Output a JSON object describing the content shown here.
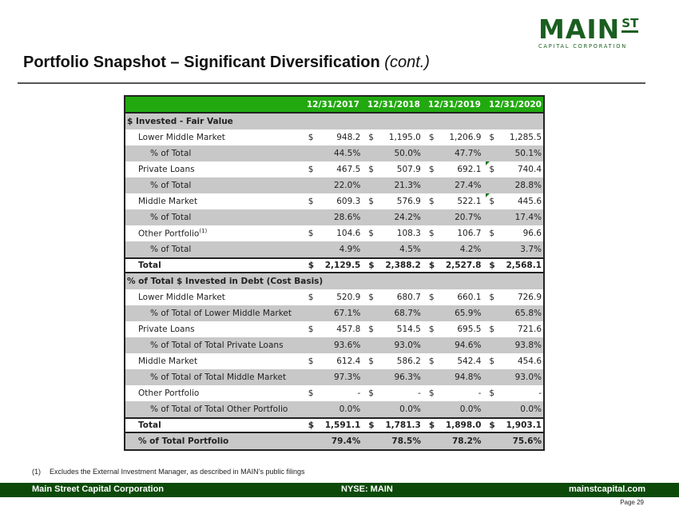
{
  "logo": {
    "main": "MAIN",
    "superscript": "ST",
    "subtitle": "CAPITAL CORPORATION"
  },
  "title": {
    "main": "Portfolio Snapshot – Significant Diversification",
    "suffix": "(cont.)"
  },
  "table": {
    "columns": [
      "12/31/2017",
      "12/31/2018",
      "12/31/2019",
      "12/31/2020"
    ],
    "rows": [
      {
        "type": "section",
        "label": "$ Invested - Fair Value"
      },
      {
        "type": "white",
        "indent": 1,
        "label": "Lower Middle Market",
        "dollar": true,
        "values": [
          "948.2",
          "1,195.0",
          "1,206.9",
          "1,285.5"
        ]
      },
      {
        "type": "gray",
        "indent": 2,
        "label": "% of Total",
        "dollar": false,
        "values": [
          "44.5%",
          "50.0%",
          "47.7%",
          "50.1%"
        ]
      },
      {
        "type": "white",
        "indent": 1,
        "label": "Private Loans",
        "dollar": true,
        "values": [
          "467.5",
          "507.9",
          "692.1",
          "740.4"
        ],
        "flag_col": 3
      },
      {
        "type": "gray",
        "indent": 2,
        "label": "% of Total",
        "dollar": false,
        "values": [
          "22.0%",
          "21.3%",
          "27.4%",
          "28.8%"
        ]
      },
      {
        "type": "white",
        "indent": 1,
        "label": "Middle Market",
        "dollar": true,
        "values": [
          "609.3",
          "576.9",
          "522.1",
          "445.6"
        ],
        "flag_col": 3
      },
      {
        "type": "gray",
        "indent": 2,
        "label": "% of Total",
        "dollar": false,
        "values": [
          "28.6%",
          "24.2%",
          "20.7%",
          "17.4%"
        ]
      },
      {
        "type": "white",
        "indent": 1,
        "label": "Other Portfolio",
        "sup": "(1)",
        "dollar": true,
        "values": [
          "104.6",
          "108.3",
          "106.7",
          "96.6"
        ]
      },
      {
        "type": "gray",
        "indent": 2,
        "label": "% of Total",
        "dollar": false,
        "values": [
          "4.9%",
          "4.5%",
          "4.2%",
          "3.7%"
        ]
      },
      {
        "type": "total",
        "indent": 1,
        "label": "Total",
        "dollar": true,
        "values": [
          "2,129.5",
          "2,388.2",
          "2,527.8",
          "2,568.1"
        ]
      },
      {
        "type": "section",
        "label": "% of Total $ Invested in Debt (Cost Basis)"
      },
      {
        "type": "white",
        "indent": 1,
        "label": "Lower Middle Market",
        "dollar": true,
        "values": [
          "520.9",
          "680.7",
          "660.1",
          "726.9"
        ]
      },
      {
        "type": "gray",
        "indent": 2,
        "label": "% of Total of Lower Middle Market",
        "dollar": false,
        "values": [
          "67.1%",
          "68.7%",
          "65.9%",
          "65.8%"
        ]
      },
      {
        "type": "white",
        "indent": 1,
        "label": "Private Loans",
        "dollar": true,
        "values": [
          "457.8",
          "514.5",
          "695.5",
          "721.6"
        ]
      },
      {
        "type": "gray",
        "indent": 2,
        "label": "% of Total of Total Private Loans",
        "dollar": false,
        "values": [
          "93.6%",
          "93.0%",
          "94.6%",
          "93.8%"
        ]
      },
      {
        "type": "white",
        "indent": 1,
        "label": "Middle Market",
        "dollar": true,
        "values": [
          "612.4",
          "586.2",
          "542.4",
          "454.6"
        ]
      },
      {
        "type": "gray",
        "indent": 2,
        "label": "% of Total of Total Middle Market",
        "dollar": false,
        "values": [
          "97.3%",
          "96.3%",
          "94.8%",
          "93.0%"
        ]
      },
      {
        "type": "white",
        "indent": 1,
        "label": "Other Portfolio",
        "dollar": true,
        "values": [
          "-",
          "-",
          "-",
          "-"
        ]
      },
      {
        "type": "gray",
        "indent": 2,
        "label": "% of Total of Total Other Portfolio",
        "dollar": false,
        "values": [
          "0.0%",
          "0.0%",
          "0.0%",
          "0.0%"
        ]
      },
      {
        "type": "total",
        "indent": 1,
        "label": "Total",
        "dollar": true,
        "values": [
          "1,591.1",
          "1,781.3",
          "1,898.0",
          "1,903.1"
        ]
      },
      {
        "type": "total-pct",
        "indent": 1,
        "label": "% of Total Portfolio",
        "dollar": false,
        "values": [
          "79.4%",
          "78.5%",
          "78.2%",
          "75.6%"
        ]
      }
    ]
  },
  "footnote": {
    "number": "(1)",
    "text": "Excludes the External Investment Manager, as described in MAIN’s public filings"
  },
  "footer": {
    "left": "Main Street Capital Corporation",
    "center": "NYSE: MAIN",
    "right": "mainstcapital.com"
  },
  "page": "Page  29",
  "colors": {
    "header_green": "#21a90f",
    "footer_green": "#0d4a0a",
    "brand_green": "#1a5e20",
    "row_gray": "#c8c8c8"
  }
}
